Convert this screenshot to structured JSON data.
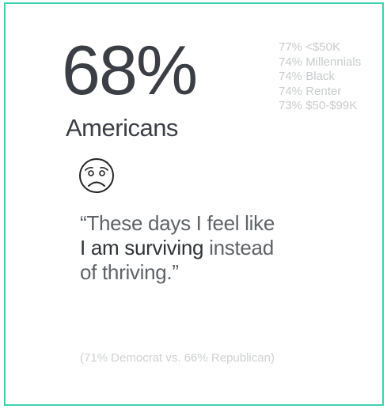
{
  "stat": {
    "value": "68%",
    "subject": "Americans"
  },
  "breakdown": [
    "77% <$50K",
    "74% Millennials",
    "74% Black",
    "74% Renter",
    "73% $50-$99K"
  ],
  "icon": "anxious-face-icon",
  "quote": {
    "part1": "“These days I feel like",
    "emphasis": "I am surviving",
    "part2": " instead",
    "part3": "of thriving.”"
  },
  "footnote": "(71% Democrat vs. 66% Republican)",
  "colors": {
    "accent_border": "#3fd1ad",
    "primary_text": "#3b3f45",
    "muted_text": "#c9cbcd"
  }
}
